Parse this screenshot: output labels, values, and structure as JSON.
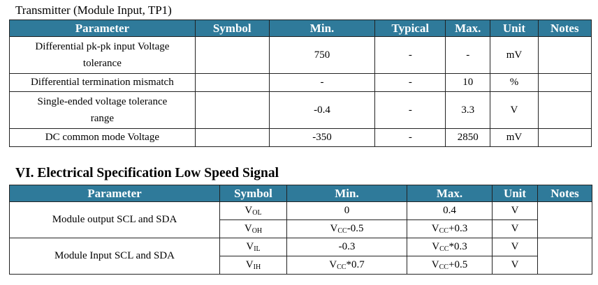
{
  "table1": {
    "caption": "Transmitter (Module Input, TP1)",
    "headers": [
      "Parameter",
      "Symbol",
      "Min.",
      "Typical",
      "Max.",
      "Unit",
      "Notes"
    ],
    "rows": [
      {
        "param_line1": "Differential pk-pk input Voltage",
        "param_line2": "tolerance",
        "symbol": "",
        "min": "750",
        "typ": "-",
        "max": "-",
        "unit": "mV",
        "notes": ""
      },
      {
        "param": "Differential termination mismatch",
        "symbol": "",
        "min": "-",
        "typ": "-",
        "max": "10",
        "unit": "%",
        "notes": ""
      },
      {
        "param_line1": "Single-ended voltage tolerance",
        "param_line2": "range",
        "symbol": "",
        "min": "-0.4",
        "typ": "-",
        "max": "3.3",
        "unit": "V",
        "notes": ""
      },
      {
        "param": "DC common mode Voltage",
        "symbol": "",
        "min": "-350",
        "typ": "-",
        "max": "2850",
        "unit": "mV",
        "notes": ""
      }
    ]
  },
  "table2": {
    "heading": "VI. Electrical Specification Low Speed Signal",
    "headers": [
      "Parameter",
      "Symbol",
      "Min.",
      "Max.",
      "Unit",
      "Notes"
    ],
    "groups": [
      {
        "param": "Module output SCL and SDA",
        "rows": [
          {
            "sym": "V",
            "sym_sub": "OL",
            "min_pre": "0",
            "min_sub": "",
            "min_post": "",
            "max_pre": "0.4",
            "max_sub": "",
            "max_post": "",
            "unit": "V"
          },
          {
            "sym": "V",
            "sym_sub": "OH",
            "min_pre": "V",
            "min_sub": "CC",
            "min_post": "-0.5",
            "max_pre": "V",
            "max_sub": "CC",
            "max_post": "+0.3",
            "unit": "V"
          }
        ]
      },
      {
        "param": "Module Input SCL and SDA",
        "rows": [
          {
            "sym": "V",
            "sym_sub": "IL",
            "min_pre": "-0.3",
            "min_sub": "",
            "min_post": "",
            "max_pre": "V",
            "max_sub": "CC",
            "max_post": "*0.3",
            "unit": "V"
          },
          {
            "sym": "V",
            "sym_sub": "IH",
            "min_pre": "V",
            "min_sub": "CC",
            "min_post": "*0.7",
            "max_pre": "V",
            "max_sub": "CC",
            "max_post": "+0.5",
            "unit": "V"
          }
        ]
      }
    ]
  }
}
